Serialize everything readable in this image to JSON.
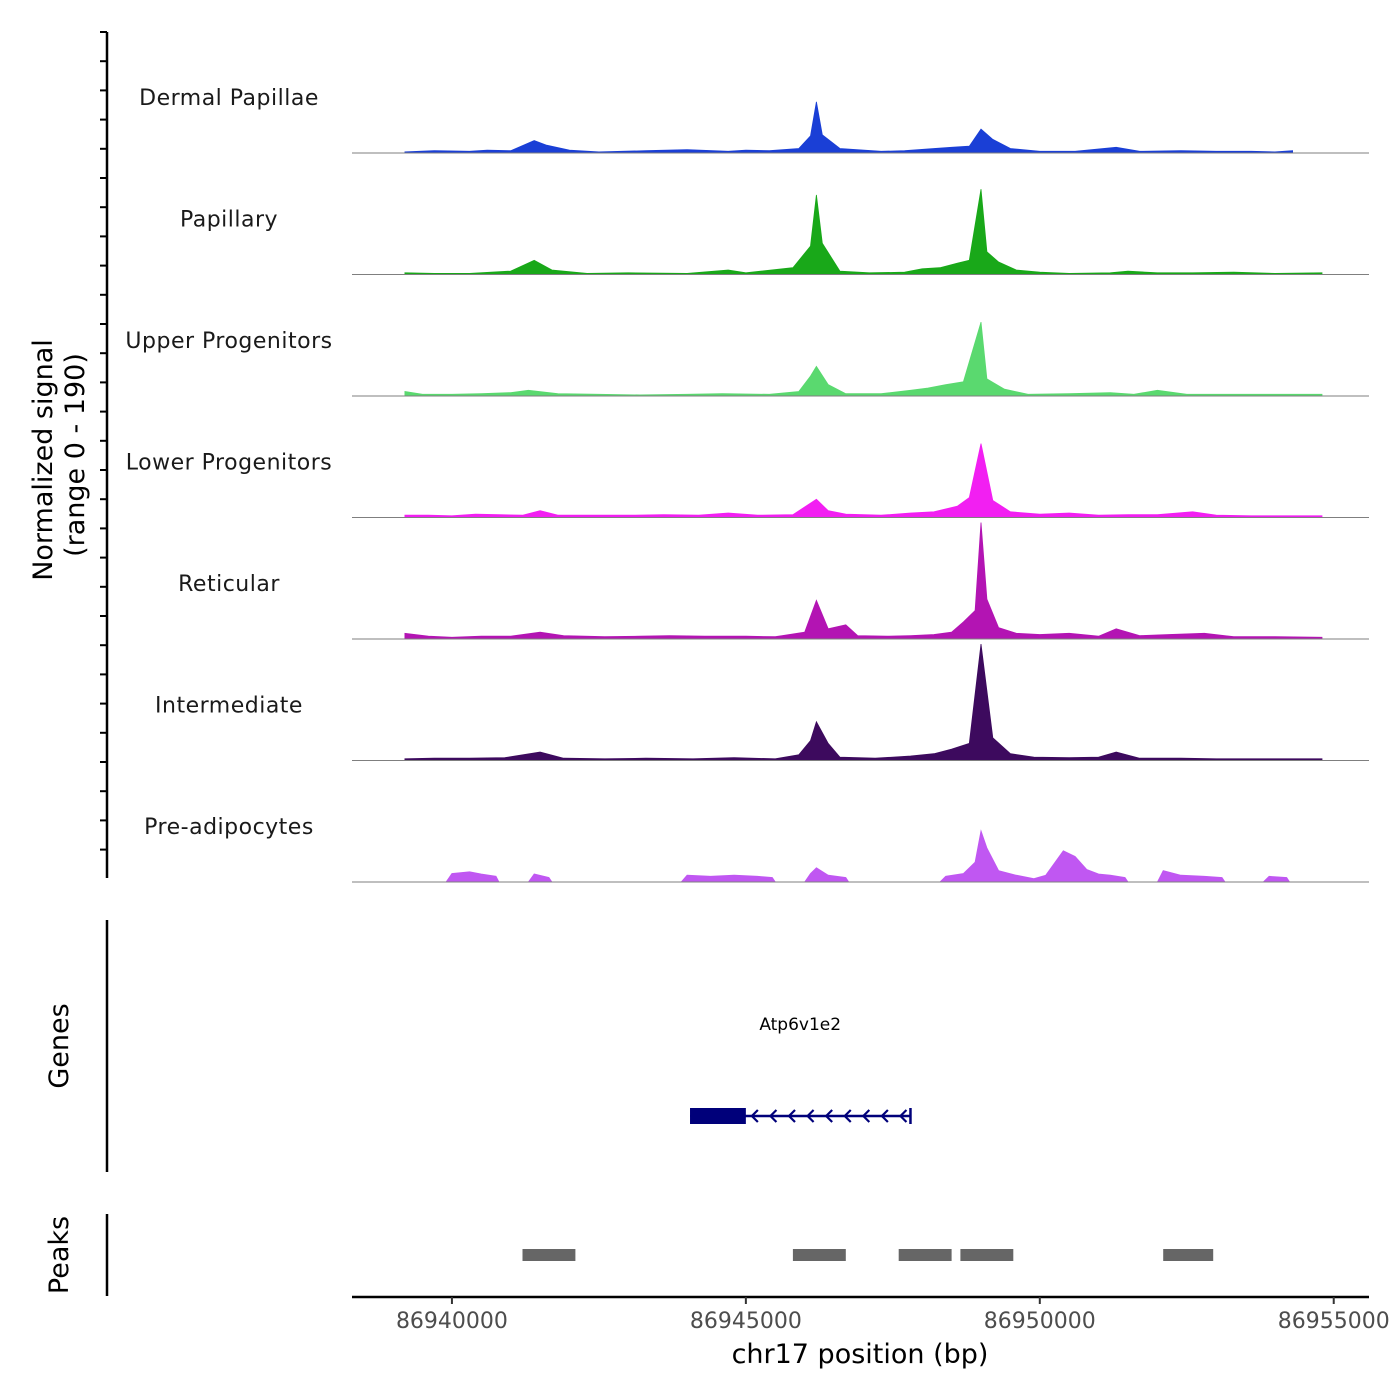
{
  "chart_data": {
    "type": "area",
    "title": "",
    "chromosome": "chr17",
    "xlabel": "chr17 position (bp)",
    "ylabel": "Normalized signal",
    "ylabel_range": "(range 0 - 190)",
    "ylim": [
      0,
      190
    ],
    "xlim": [
      86938300,
      86955600
    ],
    "x_ticks": [
      86940000,
      86945000,
      86950000,
      86955000
    ],
    "x_tick_labels": [
      "86940000",
      "86945000",
      "86950000",
      "86955000"
    ],
    "series": [
      {
        "name": "Dermal Papillae",
        "color": "#1a3fd6",
        "points": [
          [
            86939200,
            2
          ],
          [
            86939700,
            4
          ],
          [
            86940300,
            3
          ],
          [
            86940600,
            5
          ],
          [
            86941000,
            4
          ],
          [
            86941400,
            22
          ],
          [
            86941600,
            14
          ],
          [
            86942000,
            5
          ],
          [
            86942500,
            2
          ],
          [
            86943300,
            4
          ],
          [
            86944000,
            6
          ],
          [
            86944700,
            3
          ],
          [
            86945000,
            5
          ],
          [
            86945400,
            4
          ],
          [
            86945900,
            8
          ],
          [
            86946100,
            30
          ],
          [
            86946200,
            90
          ],
          [
            86946300,
            32
          ],
          [
            86946600,
            8
          ],
          [
            86947300,
            3
          ],
          [
            86947700,
            4
          ],
          [
            86948200,
            8
          ],
          [
            86948500,
            10
          ],
          [
            86948800,
            12
          ],
          [
            86949000,
            42
          ],
          [
            86949200,
            24
          ],
          [
            86949500,
            8
          ],
          [
            86950000,
            3
          ],
          [
            86950600,
            3
          ],
          [
            86951300,
            10
          ],
          [
            86951700,
            3
          ],
          [
            86952400,
            4
          ],
          [
            86953000,
            3
          ],
          [
            86953600,
            3
          ],
          [
            86954000,
            2
          ],
          [
            86954300,
            4
          ]
        ]
      },
      {
        "name": "Papillary",
        "color": "#19a819",
        "points": [
          [
            86939200,
            3
          ],
          [
            86939700,
            2
          ],
          [
            86940300,
            2
          ],
          [
            86941000,
            6
          ],
          [
            86941400,
            25
          ],
          [
            86941700,
            8
          ],
          [
            86942300,
            2
          ],
          [
            86943000,
            3
          ],
          [
            86944000,
            2
          ],
          [
            86944700,
            8
          ],
          [
            86945000,
            3
          ],
          [
            86945800,
            12
          ],
          [
            86946100,
            50
          ],
          [
            86946200,
            140
          ],
          [
            86946300,
            55
          ],
          [
            86946600,
            6
          ],
          [
            86947100,
            3
          ],
          [
            86947700,
            4
          ],
          [
            86948000,
            10
          ],
          [
            86948300,
            12
          ],
          [
            86948600,
            20
          ],
          [
            86948800,
            25
          ],
          [
            86949000,
            150
          ],
          [
            86949100,
            40
          ],
          [
            86949300,
            22
          ],
          [
            86949600,
            8
          ],
          [
            86950000,
            4
          ],
          [
            86950500,
            2
          ],
          [
            86951200,
            3
          ],
          [
            86951500,
            6
          ],
          [
            86952000,
            3
          ],
          [
            86952600,
            3
          ],
          [
            86953300,
            4
          ],
          [
            86954000,
            2
          ],
          [
            86954800,
            3
          ]
        ]
      },
      {
        "name": "Upper Progenitors",
        "color": "#5ad96f",
        "points": [
          [
            86939200,
            8
          ],
          [
            86939500,
            3
          ],
          [
            86940000,
            3
          ],
          [
            86940500,
            4
          ],
          [
            86941000,
            6
          ],
          [
            86941300,
            10
          ],
          [
            86941800,
            4
          ],
          [
            86942500,
            3
          ],
          [
            86943200,
            2
          ],
          [
            86944000,
            3
          ],
          [
            86944600,
            4
          ],
          [
            86945400,
            3
          ],
          [
            86945900,
            8
          ],
          [
            86946100,
            35
          ],
          [
            86946200,
            52
          ],
          [
            86946400,
            20
          ],
          [
            86946700,
            4
          ],
          [
            86947300,
            4
          ],
          [
            86947800,
            10
          ],
          [
            86948100,
            14
          ],
          [
            86948400,
            20
          ],
          [
            86948700,
            25
          ],
          [
            86949000,
            130
          ],
          [
            86949100,
            30
          ],
          [
            86949400,
            12
          ],
          [
            86949800,
            3
          ],
          [
            86950500,
            4
          ],
          [
            86951200,
            6
          ],
          [
            86951600,
            3
          ],
          [
            86952000,
            10
          ],
          [
            86952500,
            3
          ],
          [
            86953200,
            3
          ],
          [
            86954000,
            3
          ],
          [
            86954800,
            3
          ]
        ]
      },
      {
        "name": "Lower Progenitors",
        "color": "#f21ff2",
        "points": [
          [
            86939200,
            4
          ],
          [
            86939600,
            4
          ],
          [
            86940000,
            3
          ],
          [
            86940400,
            6
          ],
          [
            86940800,
            5
          ],
          [
            86941200,
            4
          ],
          [
            86941500,
            12
          ],
          [
            86941800,
            4
          ],
          [
            86942400,
            4
          ],
          [
            86943000,
            4
          ],
          [
            86943600,
            5
          ],
          [
            86944200,
            4
          ],
          [
            86944700,
            8
          ],
          [
            86945200,
            4
          ],
          [
            86945800,
            5
          ],
          [
            86946200,
            32
          ],
          [
            86946400,
            12
          ],
          [
            86946700,
            6
          ],
          [
            86947300,
            4
          ],
          [
            86947800,
            8
          ],
          [
            86948200,
            10
          ],
          [
            86948600,
            20
          ],
          [
            86948800,
            35
          ],
          [
            86949000,
            130
          ],
          [
            86949200,
            30
          ],
          [
            86949500,
            10
          ],
          [
            86950000,
            6
          ],
          [
            86950500,
            8
          ],
          [
            86951000,
            4
          ],
          [
            86951500,
            5
          ],
          [
            86952000,
            5
          ],
          [
            86952600,
            10
          ],
          [
            86953000,
            4
          ],
          [
            86953600,
            3
          ],
          [
            86954300,
            3
          ],
          [
            86954800,
            3
          ]
        ]
      },
      {
        "name": "Reticular",
        "color": "#b314b3",
        "points": [
          [
            86939200,
            10
          ],
          [
            86939600,
            5
          ],
          [
            86940000,
            3
          ],
          [
            86940500,
            5
          ],
          [
            86941000,
            5
          ],
          [
            86941500,
            12
          ],
          [
            86941900,
            6
          ],
          [
            86942600,
            4
          ],
          [
            86943200,
            5
          ],
          [
            86943700,
            6
          ],
          [
            86944300,
            5
          ],
          [
            86945000,
            5
          ],
          [
            86945500,
            4
          ],
          [
            86946000,
            12
          ],
          [
            86946200,
            68
          ],
          [
            86946400,
            18
          ],
          [
            86946700,
            25
          ],
          [
            86946900,
            6
          ],
          [
            86947400,
            5
          ],
          [
            86947800,
            6
          ],
          [
            86948200,
            8
          ],
          [
            86948500,
            12
          ],
          [
            86948700,
            30
          ],
          [
            86948900,
            50
          ],
          [
            86949000,
            205
          ],
          [
            86949100,
            70
          ],
          [
            86949300,
            20
          ],
          [
            86949600,
            10
          ],
          [
            86950000,
            8
          ],
          [
            86950500,
            10
          ],
          [
            86951000,
            5
          ],
          [
            86951300,
            18
          ],
          [
            86951700,
            6
          ],
          [
            86952200,
            8
          ],
          [
            86952800,
            10
          ],
          [
            86953300,
            4
          ],
          [
            86954000,
            4
          ],
          [
            86954800,
            3
          ]
        ]
      },
      {
        "name": "Intermediate",
        "color": "#3d0a5e",
        "points": [
          [
            86939200,
            3
          ],
          [
            86939700,
            4
          ],
          [
            86940300,
            4
          ],
          [
            86940900,
            5
          ],
          [
            86941500,
            15
          ],
          [
            86941900,
            4
          ],
          [
            86942600,
            3
          ],
          [
            86943300,
            4
          ],
          [
            86944100,
            3
          ],
          [
            86944800,
            5
          ],
          [
            86945500,
            3
          ],
          [
            86945900,
            10
          ],
          [
            86946100,
            35
          ],
          [
            86946200,
            68
          ],
          [
            86946400,
            30
          ],
          [
            86946600,
            6
          ],
          [
            86947200,
            4
          ],
          [
            86947800,
            8
          ],
          [
            86948200,
            12
          ],
          [
            86948500,
            20
          ],
          [
            86948800,
            30
          ],
          [
            86949000,
            205
          ],
          [
            86949200,
            40
          ],
          [
            86949500,
            12
          ],
          [
            86949900,
            6
          ],
          [
            86950500,
            5
          ],
          [
            86951000,
            6
          ],
          [
            86951300,
            15
          ],
          [
            86951700,
            4
          ],
          [
            86952400,
            4
          ],
          [
            86953000,
            3
          ],
          [
            86953700,
            3
          ],
          [
            86954300,
            3
          ],
          [
            86954800,
            3
          ]
        ]
      },
      {
        "name": "Pre-adipocytes",
        "color": "#c057f2",
        "points": [
          [
            86939900,
            0
          ],
          [
            86940000,
            15
          ],
          [
            86940300,
            18
          ],
          [
            86940500,
            14
          ],
          [
            86940750,
            10
          ],
          [
            86940800,
            0
          ],
          [
            86941300,
            0
          ],
          [
            86941400,
            14
          ],
          [
            86941650,
            8
          ],
          [
            86941700,
            0
          ],
          [
            86943900,
            0
          ],
          [
            86944000,
            12
          ],
          [
            86944400,
            10
          ],
          [
            86944800,
            12
          ],
          [
            86945200,
            10
          ],
          [
            86945450,
            8
          ],
          [
            86945500,
            0
          ],
          [
            86946000,
            0
          ],
          [
            86946100,
            15
          ],
          [
            86946200,
            25
          ],
          [
            86946400,
            12
          ],
          [
            86946700,
            8
          ],
          [
            86946750,
            0
          ],
          [
            86948300,
            0
          ],
          [
            86948400,
            10
          ],
          [
            86948700,
            15
          ],
          [
            86948900,
            35
          ],
          [
            86949000,
            90
          ],
          [
            86949100,
            60
          ],
          [
            86949300,
            20
          ],
          [
            86949600,
            12
          ],
          [
            86949900,
            6
          ],
          [
            86950100,
            12
          ],
          [
            86950400,
            55
          ],
          [
            86950600,
            45
          ],
          [
            86950800,
            22
          ],
          [
            86951000,
            14
          ],
          [
            86951200,
            12
          ],
          [
            86951450,
            8
          ],
          [
            86951500,
            0
          ],
          [
            86952000,
            0
          ],
          [
            86952100,
            20
          ],
          [
            86952400,
            12
          ],
          [
            86952800,
            10
          ],
          [
            86953100,
            8
          ],
          [
            86953150,
            0
          ],
          [
            86953800,
            0
          ],
          [
            86953900,
            10
          ],
          [
            86954200,
            8
          ],
          [
            86954250,
            0
          ]
        ]
      }
    ],
    "genes": [
      {
        "name": "Atp6v1e2",
        "strand": "-",
        "start": 86944050,
        "end": 86947800,
        "exons": [
          [
            86944050,
            86945000
          ]
        ],
        "color": "#00007a"
      }
    ],
    "peaks": [
      [
        86941200,
        86942100
      ],
      [
        86945800,
        86946700
      ],
      [
        86947600,
        86948500
      ],
      [
        86948650,
        86949550
      ],
      [
        86952100,
        86952950
      ]
    ],
    "peaks_color": "#666666",
    "gene_track_label": "Genes",
    "peaks_track_label": "Peaks"
  }
}
